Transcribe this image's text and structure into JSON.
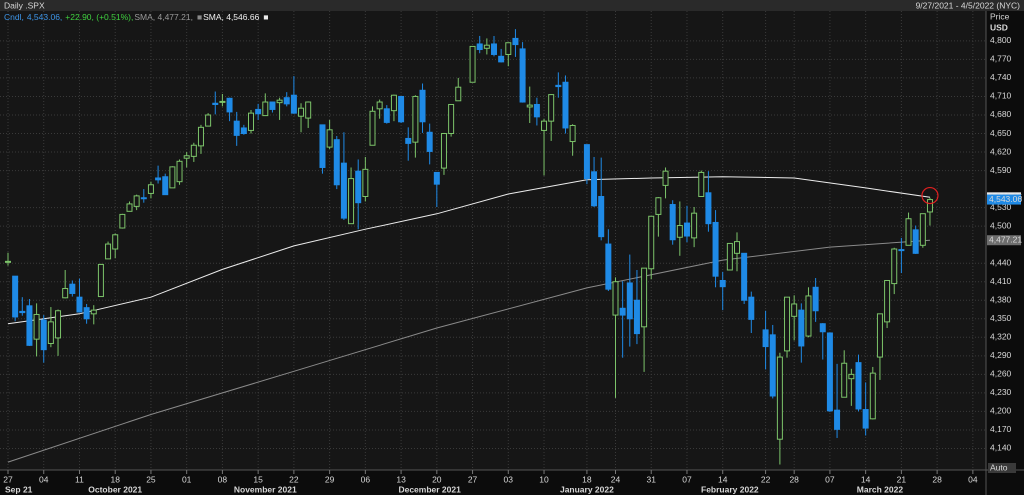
{
  "chart_data": {
    "type": "candlestick",
    "title": "Daily .SPX",
    "date_range": "9/27/2021 - 4/5/2022 (NYC)",
    "y_label": "Price",
    "y_unit": "USD",
    "autoscale_label": "Auto",
    "up_color": "#7cc46a",
    "down_color": "#1f8ae6",
    "close_label": "4,543.06",
    "legend": [
      [
        {
          "text": "Cndl,",
          "color": "#3d95e8"
        },
        {
          "text": "4,543.06,",
          "color": "#3d95e8"
        },
        {
          "text": "+22.90, (+0.51%),",
          "color": "#3fd13f"
        }
      ],
      [
        {
          "text": "SMA, 4,477.21,",
          "color": "#9a9a9a"
        }
      ],
      [
        {
          "text": "SMA, 4,546.66",
          "color": "#f0f0f0"
        }
      ]
    ],
    "dates": [
      "2021-09-27",
      "2021-09-28",
      "2021-09-29",
      "2021-09-30",
      "2021-10-01",
      "2021-10-04",
      "2021-10-05",
      "2021-10-06",
      "2021-10-07",
      "2021-10-08",
      "2021-10-11",
      "2021-10-12",
      "2021-10-13",
      "2021-10-14",
      "2021-10-15",
      "2021-10-18",
      "2021-10-19",
      "2021-10-20",
      "2021-10-21",
      "2021-10-22",
      "2021-10-25",
      "2021-10-26",
      "2021-10-27",
      "2021-10-28",
      "2021-10-29",
      "2021-11-01",
      "2021-11-02",
      "2021-11-03",
      "2021-11-04",
      "2021-11-05",
      "2021-11-08",
      "2021-11-09",
      "2021-11-10",
      "2021-11-11",
      "2021-11-12",
      "2021-11-15",
      "2021-11-16",
      "2021-11-17",
      "2021-11-18",
      "2021-11-19",
      "2021-11-22",
      "2021-11-23",
      "2021-11-24",
      "2021-11-26",
      "2021-11-29",
      "2021-11-30",
      "2021-12-01",
      "2021-12-02",
      "2021-12-03",
      "2021-12-06",
      "2021-12-07",
      "2021-12-08",
      "2021-12-09",
      "2021-12-10",
      "2021-12-13",
      "2021-12-14",
      "2021-12-15",
      "2021-12-16",
      "2021-12-17",
      "2021-12-20",
      "2021-12-21",
      "2021-12-22",
      "2021-12-23",
      "2021-12-27",
      "2021-12-28",
      "2021-12-29",
      "2021-12-30",
      "2021-12-31",
      "2022-01-03",
      "2022-01-04",
      "2022-01-05",
      "2022-01-06",
      "2022-01-07",
      "2022-01-10",
      "2022-01-11",
      "2022-01-12",
      "2022-01-13",
      "2022-01-14",
      "2022-01-18",
      "2022-01-19",
      "2022-01-20",
      "2022-01-21",
      "2022-01-24",
      "2022-01-25",
      "2022-01-26",
      "2022-01-27",
      "2022-01-28",
      "2022-01-31",
      "2022-02-01",
      "2022-02-02",
      "2022-02-03",
      "2022-02-04",
      "2022-02-07",
      "2022-02-08",
      "2022-02-09",
      "2022-02-10",
      "2022-02-11",
      "2022-02-14",
      "2022-02-15",
      "2022-02-16",
      "2022-02-17",
      "2022-02-18",
      "2022-02-22",
      "2022-02-23",
      "2022-02-24",
      "2022-02-25",
      "2022-02-28",
      "2022-03-01",
      "2022-03-02",
      "2022-03-03",
      "2022-03-04",
      "2022-03-07",
      "2022-03-08",
      "2022-03-09",
      "2022-03-10",
      "2022-03-11",
      "2022-03-14",
      "2022-03-15",
      "2022-03-16",
      "2022-03-17",
      "2022-03-18",
      "2022-03-21",
      "2022-03-22",
      "2022-03-23",
      "2022-03-24",
      "2022-03-25"
    ],
    "open": [
      4442,
      4419,
      4362,
      4371,
      4317,
      4348,
      4310,
      4319,
      4384,
      4406,
      4385,
      4368,
      4358,
      4386,
      4447,
      4463,
      4497,
      4524,
      4532,
      4546,
      4553,
      4578,
      4580,
      4562,
      4572,
      4610,
      4613,
      4630,
      4662,
      4699,
      4701,
      4707,
      4670,
      4659,
      4655,
      4689,
      4679,
      4701,
      4700,
      4708,
      4712,
      4678,
      4675,
      4664,
      4628,
      4640,
      4602,
      4504,
      4589,
      4548,
      4631,
      4690,
      4690,
      4687,
      4710,
      4642,
      4636,
      4720,
      4652,
      4587,
      4594,
      4650,
      4703,
      4733,
      4795,
      4788,
      4795,
      4775,
      4778,
      4804,
      4787,
      4693,
      4697,
      4655,
      4670,
      4728,
      4733,
      4637,
      4632,
      4588,
      4548,
      4471,
      4356,
      4367,
      4408,
      4380,
      4337,
      4431,
      4519,
      4566,
      4535,
      4482,
      4505,
      4481,
      4548,
      4554,
      4506,
      4412,
      4429,
      4456,
      4456,
      4385,
      4332,
      4324,
      4155,
      4298,
      4354,
      4364,
      4322,
      4401,
      4342,
      4327,
      4202,
      4223,
      4253,
      4279,
      4203,
      4188,
      4288,
      4345,
      4407,
      4462,
      4469,
      4494,
      4469,
      4523
    ],
    "high": [
      4457,
      4419,
      4385,
      4382,
      4375,
      4356,
      4369,
      4365,
      4429,
      4412,
      4415,
      4374,
      4372,
      4439,
      4475,
      4488,
      4520,
      4540,
      4551,
      4560,
      4572,
      4598,
      4585,
      4597,
      4608,
      4620,
      4635,
      4664,
      4683,
      4718,
      4714,
      4708,
      4685,
      4664,
      4688,
      4698,
      4715,
      4701,
      4708,
      4717,
      4743,
      4699,
      4702,
      4664,
      4672,
      4646,
      4652,
      4595,
      4608,
      4612,
      4694,
      4705,
      4696,
      4713,
      4710,
      4660,
      4712,
      4731,
      4666,
      4587,
      4651,
      4697,
      4740,
      4791,
      4808,
      4804,
      4808,
      4787,
      4797,
      4819,
      4798,
      4726,
      4708,
      4674,
      4714,
      4749,
      4744,
      4665,
      4632,
      4612,
      4611,
      4495,
      4417,
      4411,
      4454,
      4429,
      4432,
      4516,
      4547,
      4595,
      4542,
      4540,
      4533,
      4531,
      4590,
      4589,
      4526,
      4426,
      4472,
      4490,
      4456,
      4394,
      4363,
      4340,
      4295,
      4385,
      4388,
      4375,
      4401,
      4416,
      4343,
      4328,
      4277,
      4299,
      4269,
      4292,
      4247,
      4272,
      4358,
      4412,
      4465,
      4481,
      4522,
      4501,
      4520,
      4546
    ],
    "low": [
      4436,
      4346,
      4355,
      4306,
      4289,
      4279,
      4304,
      4290,
      4383,
      4386,
      4360,
      4342,
      4341,
      4386,
      4447,
      4448,
      4496,
      4524,
      4526,
      4538,
      4545,
      4569,
      4551,
      4562,
      4567,
      4595,
      4604,
      4617,
      4662,
      4681,
      4694,
      4670,
      4630,
      4648,
      4650,
      4672,
      4679,
      4684,
      4672,
      4694,
      4682,
      4652,
      4659,
      4585,
      4625,
      4560,
      4510,
      4504,
      4495,
      4540,
      4631,
      4674,
      4666,
      4670,
      4667,
      4606,
      4611,
      4651,
      4600,
      4531,
      4583,
      4645,
      4703,
      4733,
      4780,
      4778,
      4775,
      4765,
      4759,
      4774,
      4700,
      4667,
      4663,
      4582,
      4638,
      4708,
      4650,
      4614,
      4568,
      4531,
      4477,
      4395,
      4222,
      4287,
      4305,
      4309,
      4264,
      4414,
      4483,
      4545,
      4470,
      4452,
      4474,
      4466,
      4548,
      4491,
      4401,
      4364,
      4429,
      4427,
      4374,
      4327,
      4268,
      4221,
      4114,
      4287,
      4315,
      4279,
      4320,
      4345,
      4284,
      4199,
      4157,
      4223,
      4209,
      4200,
      4161,
      4187,
      4251,
      4335,
      4390,
      4424,
      4469,
      4455,
      4465,
      4501
    ],
    "close": [
      4443,
      4353,
      4360,
      4307,
      4357,
      4300,
      4345,
      4363,
      4399,
      4391,
      4361,
      4350,
      4364,
      4438,
      4471,
      4486,
      4519,
      4536,
      4549,
      4545,
      4567,
      4575,
      4551,
      4596,
      4605,
      4614,
      4631,
      4660,
      4680,
      4697,
      4702,
      4685,
      4647,
      4650,
      4683,
      4682,
      4701,
      4689,
      4704,
      4698,
      4683,
      4691,
      4701,
      4595,
      4656,
      4567,
      4513,
      4577,
      4538,
      4592,
      4686,
      4701,
      4668,
      4712,
      4669,
      4634,
      4710,
      4669,
      4621,
      4568,
      4650,
      4697,
      4725,
      4791,
      4786,
      4793,
      4778,
      4766,
      4797,
      4794,
      4701,
      4696,
      4677,
      4670,
      4713,
      4726,
      4659,
      4663,
      4577,
      4533,
      4483,
      4398,
      4410,
      4356,
      4350,
      4326,
      4432,
      4516,
      4546,
      4589,
      4478,
      4501,
      4484,
      4521,
      4587,
      4504,
      4419,
      4402,
      4472,
      4475,
      4380,
      4349,
      4305,
      4225,
      4288,
      4385,
      4374,
      4306,
      4387,
      4363,
      4329,
      4201,
      4171,
      4278,
      4260,
      4204,
      4173,
      4262,
      4358,
      4412,
      4463,
      4461,
      4512,
      4456,
      4520.16,
      4543.06
    ],
    "sma": [
      {
        "name": "SMA",
        "color": "#8a8a8a",
        "last_label": "4,477.21",
        "dates": [
          "2021-09-27",
          "2021-10-25",
          "2021-11-22",
          "2021-12-20",
          "2022-01-18",
          "2022-02-14",
          "2022-03-07",
          "2022-03-25"
        ],
        "values": [
          4118,
          4195,
          4265,
          4335,
          4400,
          4445,
          4466,
          4477.21
        ]
      },
      {
        "name": "SMA",
        "color": "#ececec",
        "last_label": "4,546.66",
        "dates": [
          "2021-09-27",
          "2021-10-11",
          "2021-10-25",
          "2021-11-08",
          "2021-11-22",
          "2021-12-06",
          "2021-12-20",
          "2022-01-03",
          "2022-01-18",
          "2022-01-31",
          "2022-02-14",
          "2022-02-28",
          "2022-03-14",
          "2022-03-25"
        ],
        "values": [
          4342,
          4358,
          4385,
          4430,
          4468,
          4495,
          4520,
          4552,
          4575,
          4578,
          4580,
          4578,
          4562,
          4546.66
        ]
      }
    ],
    "ylim": [
      4110,
      4850
    ],
    "yticks": [
      {
        "value": 4140,
        "label": "4,140"
      },
      {
        "value": 4170,
        "label": "4,170"
      },
      {
        "value": 4200,
        "label": "4,200"
      },
      {
        "value": 4230,
        "label": "4,230"
      },
      {
        "value": 4260,
        "label": "4,260"
      },
      {
        "value": 4290,
        "label": "4,290"
      },
      {
        "value": 4320,
        "label": "4,320"
      },
      {
        "value": 4350,
        "label": "4,350"
      },
      {
        "value": 4380,
        "label": "4,380"
      },
      {
        "value": 4410,
        "label": "4,410"
      },
      {
        "value": 4440,
        "label": "4,440"
      },
      {
        "value": 4500,
        "label": "4,500"
      },
      {
        "value": 4530,
        "label": "4,530"
      },
      {
        "value": 4590,
        "label": "4,590"
      },
      {
        "value": 4620,
        "label": "4,620"
      },
      {
        "value": 4650,
        "label": "4,650"
      },
      {
        "value": 4680,
        "label": "4,680"
      },
      {
        "value": 4710,
        "label": "4,710"
      },
      {
        "value": 4740,
        "label": "4,740"
      },
      {
        "value": 4770,
        "label": "4,770"
      },
      {
        "value": 4800,
        "label": "4,800"
      }
    ],
    "xlim": [
      "2021-09-27",
      "2022-04-05"
    ],
    "xticks": [
      {
        "value": "2021-09-27",
        "label": "27"
      },
      {
        "value": "2021-10-04",
        "label": "04"
      },
      {
        "value": "2021-10-11",
        "label": "11"
      },
      {
        "value": "2021-10-18",
        "label": "18"
      },
      {
        "value": "2021-10-25",
        "label": "25"
      },
      {
        "value": "2021-11-01",
        "label": "01"
      },
      {
        "value": "2021-11-08",
        "label": "08"
      },
      {
        "value": "2021-11-15",
        "label": "15"
      },
      {
        "value": "2021-11-22",
        "label": "22"
      },
      {
        "value": "2021-11-29",
        "label": "29"
      },
      {
        "value": "2021-12-06",
        "label": "06"
      },
      {
        "value": "2021-12-13",
        "label": "13"
      },
      {
        "value": "2021-12-20",
        "label": "20"
      },
      {
        "value": "2021-12-27",
        "label": "27"
      },
      {
        "value": "2022-01-03",
        "label": "03"
      },
      {
        "value": "2022-01-10",
        "label": "10"
      },
      {
        "value": "2022-01-18",
        "label": "18"
      },
      {
        "value": "2022-01-24",
        "label": "24"
      },
      {
        "value": "2022-01-31",
        "label": "31"
      },
      {
        "value": "2022-02-07",
        "label": "07"
      },
      {
        "value": "2022-02-14",
        "label": "14"
      },
      {
        "value": "2022-02-22",
        "label": "22"
      },
      {
        "value": "2022-02-28",
        "label": "28"
      },
      {
        "value": "2022-03-07",
        "label": "07"
      },
      {
        "value": "2022-03-14",
        "label": "14"
      },
      {
        "value": "2022-03-21",
        "label": "21"
      },
      {
        "value": "2022-03-28",
        "label": "28"
      },
      {
        "value": "2022-04-04",
        "label": "04"
      }
    ],
    "month_labels": [
      {
        "value": "2021-09-27",
        "label": "Sep 21"
      },
      {
        "value": "2021-10-18",
        "label": "October 2021"
      },
      {
        "value": "2021-11-16",
        "label": "November 2021"
      },
      {
        "value": "2021-12-17",
        "label": "December 2021"
      },
      {
        "value": "2022-01-18",
        "label": "January 2022"
      },
      {
        "value": "2022-02-15",
        "label": "February 2022"
      },
      {
        "value": "2022-03-16",
        "label": "March 2022"
      }
    ],
    "grid": true
  }
}
